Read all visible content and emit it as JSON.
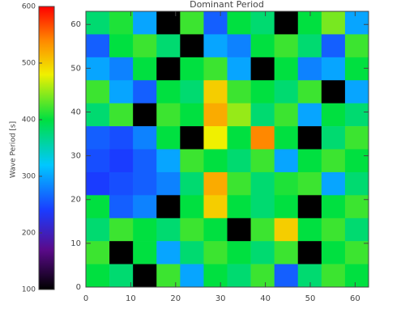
{
  "chart_data": {
    "type": "heatmap",
    "title": "Dominant Period",
    "colorbar_label": "Wave Period [s]",
    "xlim": [
      0,
      63
    ],
    "ylim": [
      0,
      63
    ],
    "xticks": [
      0,
      10,
      20,
      30,
      40,
      50,
      60
    ],
    "yticks": [
      0,
      10,
      20,
      30,
      40,
      50,
      60
    ],
    "clim": [
      100,
      600
    ],
    "cticks": [
      100,
      200,
      300,
      400,
      500,
      600
    ],
    "colormap": [
      {
        "value": 100,
        "color": "#000000"
      },
      {
        "value": 170,
        "color": "#5a0a8a"
      },
      {
        "value": 240,
        "color": "#1a3cff"
      },
      {
        "value": 320,
        "color": "#00c8ff"
      },
      {
        "value": 400,
        "color": "#00e040"
      },
      {
        "value": 480,
        "color": "#f0f000"
      },
      {
        "value": 540,
        "color": "#ff8800"
      },
      {
        "value": 600,
        "color": "#ff0000"
      }
    ],
    "z": [
      [
        380,
        410,
        300,
        100,
        420,
        260,
        400,
        380,
        100,
        400,
        440,
        300
      ],
      [
        260,
        400,
        420,
        380,
        100,
        300,
        280,
        400,
        420,
        380,
        260,
        420
      ],
      [
        300,
        280,
        400,
        100,
        400,
        420,
        300,
        100,
        400,
        280,
        300,
        400
      ],
      [
        420,
        300,
        260,
        400,
        380,
        500,
        420,
        400,
        380,
        420,
        100,
        300
      ],
      [
        380,
        420,
        100,
        420,
        400,
        520,
        450,
        380,
        420,
        300,
        400,
        380
      ],
      [
        260,
        250,
        280,
        400,
        100,
        480,
        400,
        540,
        400,
        100,
        380,
        420
      ],
      [
        250,
        240,
        260,
        300,
        420,
        400,
        380,
        420,
        300,
        400,
        420,
        400
      ],
      [
        240,
        250,
        260,
        280,
        380,
        520,
        420,
        380,
        410,
        420,
        300,
        380
      ],
      [
        400,
        260,
        280,
        100,
        400,
        500,
        400,
        380,
        400,
        100,
        400,
        420
      ],
      [
        380,
        420,
        400,
        380,
        420,
        400,
        100,
        420,
        500,
        400,
        420,
        380
      ],
      [
        420,
        100,
        400,
        300,
        380,
        420,
        400,
        380,
        420,
        100,
        400,
        420
      ],
      [
        400,
        380,
        100,
        420,
        300,
        400,
        380,
        420,
        260,
        380,
        420,
        400
      ]
    ]
  }
}
